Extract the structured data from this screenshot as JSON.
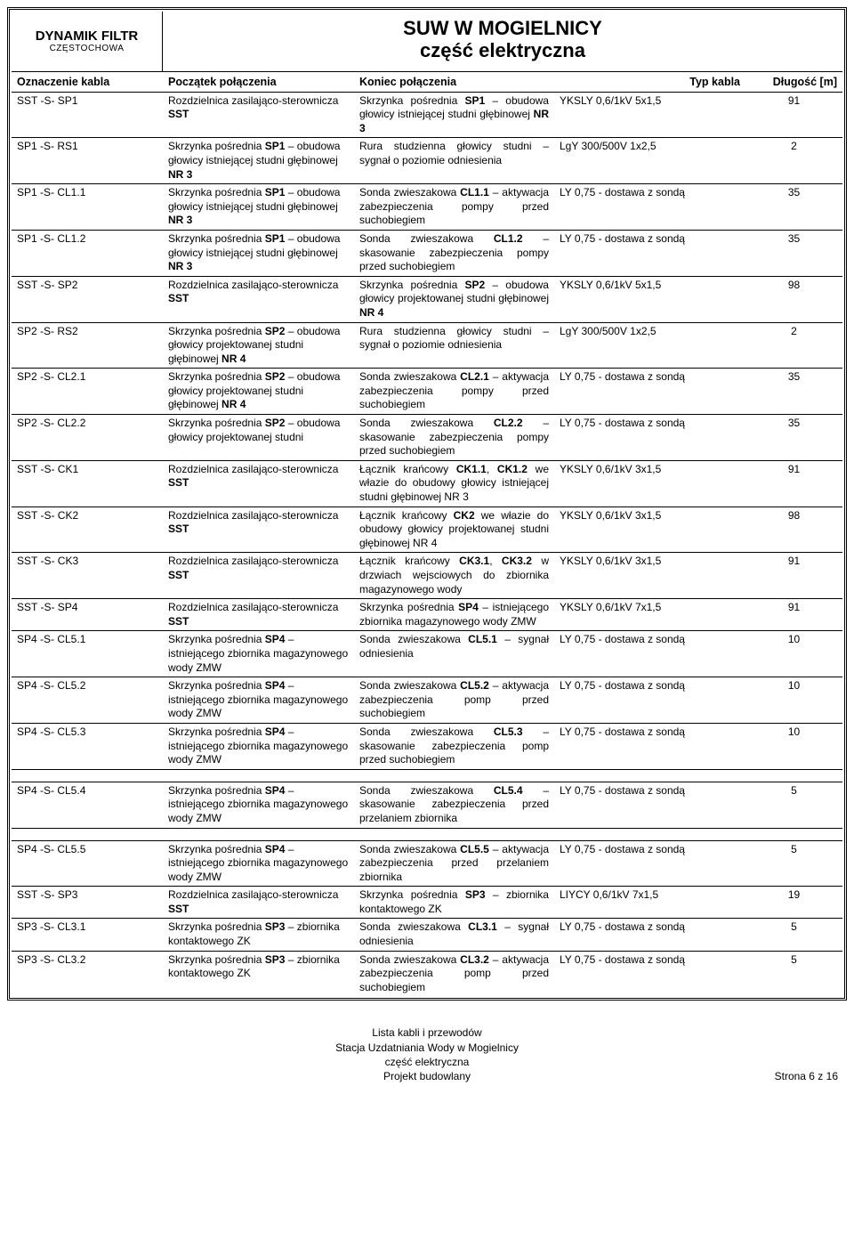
{
  "brand": {
    "name": "DYNAMIK FILTR",
    "city": "CZĘSTOCHOWA"
  },
  "doc": {
    "title1": "SUW W MOGIELNICY",
    "title2": "część elektryczna"
  },
  "headers": {
    "ozn": "Oznaczenie kabla",
    "pocz": "Początek połączenia",
    "kon": "Koniec połączenia",
    "typ": "Typ kabla",
    "dl": "Długość [m]"
  },
  "rows": [
    {
      "ozn": "SST -S- SP1",
      "pocz": "Rozdzielnica zasilająco-sterownicza <b>SST</b>",
      "kon": "Skrzynka pośrednia <b>SP1</b> – obudowa głowicy istniejącej studni głębinowej <b>NR 3</b>",
      "typ": "YKSLY 0,6/1kV 5x1,5",
      "dl": "91"
    },
    {
      "ozn": "SP1 -S- RS1",
      "pocz": "Skrzynka pośrednia <b>SP1</b> – obudowa głowicy istniejącej studni głębinowej <b>NR 3</b>",
      "kon": "Rura studzienna głowicy studni – sygnał o poziomie odniesienia",
      "typ": "LgY 300/500V 1x2,5",
      "dl": "2"
    },
    {
      "ozn": "SP1 -S- CL1.1",
      "pocz": "Skrzynka pośrednia <b>SP1</b> – obudowa głowicy istniejącej studni głębinowej <b>NR 3</b>",
      "kon": "Sonda zwieszakowa <b>CL1.1</b> – aktywacja zabezpieczenia pompy przed suchobiegiem",
      "typ": "LY 0,75 - dostawa z sondą",
      "dl": "35"
    },
    {
      "ozn": "SP1 -S- CL1.2",
      "pocz": "Skrzynka pośrednia <b>SP1</b> – obudowa głowicy istniejącej studni głębinowej <b>NR 3</b>",
      "kon": "Sonda zwieszakowa <b>CL1.2</b> – skasowanie zabezpieczenia pompy przed suchobiegiem",
      "typ": "LY 0,75 - dostawa z sondą",
      "dl": "35"
    },
    {
      "ozn": "SST -S- SP2",
      "pocz": "Rozdzielnica zasilająco-sterownicza <b>SST</b>",
      "kon": "Skrzynka pośrednia <b>SP2</b> – obudowa głowicy projektowanej studni głębinowej <b>NR 4</b>",
      "typ": "YKSLY 0,6/1kV 5x1,5",
      "dl": "98"
    },
    {
      "ozn": "SP2 -S- RS2",
      "pocz": "Skrzynka pośrednia <b>SP2</b> – obudowa głowicy projektowanej studni głębinowej <b>NR 4</b>",
      "kon": "Rura studzienna głowicy studni – sygnał o poziomie odniesienia",
      "typ": "LgY 300/500V 1x2,5",
      "dl": "2"
    },
    {
      "ozn": "SP2 -S- CL2.1",
      "pocz": "Skrzynka pośrednia <b>SP2</b> – obudowa głowicy projektowanej studni głębinowej <b>NR 4</b>",
      "kon": "Sonda zwieszakowa <b>CL2.1</b> – aktywacja zabezpieczenia pompy przed suchobiegiem",
      "typ": "LY 0,75 - dostawa z sondą",
      "dl": "35"
    },
    {
      "ozn": "SP2 -S- CL2.2",
      "pocz": "Skrzynka pośrednia <b>SP2</b> – obudowa głowicy projektowanej studni",
      "kon": "Sonda zwieszakowa <b>CL2.2</b> – skasowanie zabezpieczenia pompy przed suchobiegiem",
      "typ": "LY 0,75 - dostawa z sondą",
      "dl": "35"
    },
    {
      "ozn": "SST -S- CK1",
      "pocz": "Rozdzielnica zasilająco-sterownicza <b>SST</b>",
      "kon": "Łącznik krańcowy <b>CK1.1</b>, <b>CK1.2</b> we włazie do obudowy głowicy istniejącej studni głębinowej NR 3",
      "typ": "YKSLY 0,6/1kV 3x1,5",
      "dl": "91"
    },
    {
      "ozn": "SST -S- CK2",
      "pocz": "Rozdzielnica zasilająco-sterownicza <b>SST</b>",
      "kon": "Łącznik krańcowy <b>CK2</b> we włazie do obudowy głowicy projektowanej studni głębinowej NR 4",
      "typ": "YKSLY 0,6/1kV 3x1,5",
      "dl": "98"
    },
    {
      "ozn": "SST -S- CK3",
      "pocz": "Rozdzielnica zasilająco-sterownicza <b>SST</b>",
      "kon": "Łącznik krańcowy <b>CK3.1</b>, <b>CK3.2</b> w drzwiach wejsciowych do zbiornika magazynowego wody",
      "typ": "YKSLY 0,6/1kV 3x1,5",
      "dl": "91"
    },
    {
      "ozn": "SST -S- SP4",
      "pocz": "Rozdzielnica zasilająco-sterownicza <b>SST</b>",
      "kon": "Skrzynka pośrednia <b>SP4</b> – istniejącego zbiornika magazynowego wody ZMW",
      "typ": "YKSLY 0,6/1kV 7x1,5",
      "dl": "91"
    },
    {
      "ozn": "SP4 -S- CL5.1",
      "pocz": "Skrzynka pośrednia <b>SP4</b> – istniejącego zbiornika magazynowego wody ZMW",
      "kon": "Sonda zwieszakowa <b>CL5.1</b> – sygnał odniesienia",
      "typ": "LY 0,75 - dostawa z sondą",
      "dl": "10"
    },
    {
      "ozn": "SP4 -S- CL5.2",
      "pocz": "Skrzynka pośrednia <b>SP4</b> – istniejącego zbiornika magazynowego wody ZMW",
      "kon": "Sonda zwieszakowa <b>CL5.2</b> – aktywacja zabezpieczenia pomp przed suchobiegiem",
      "typ": "LY 0,75 - dostawa z sondą",
      "dl": "10"
    },
    {
      "ozn": "SP4 -S- CL5.3",
      "pocz": "Skrzynka pośrednia <b>SP4</b> – istniejącego zbiornika magazynowego wody ZMW",
      "kon": "Sonda zwieszakowa <b>CL5.3</b> – skasowanie zabezpieczenia pomp przed suchobiegiem",
      "typ": "LY 0,75 - dostawa z sondą",
      "dl": "10"
    },
    {
      "spacer": true
    },
    {
      "ozn": "SP4 -S- CL5.4",
      "pocz": "Skrzynka pośrednia <b>SP4</b> – istniejącego zbiornika magazynowego wody ZMW",
      "kon": "Sonda zwieszakowa <b>CL5.4</b> – skasowanie zabezpieczenia przed przelaniem zbiornika",
      "typ": "LY 0,75 - dostawa z sondą",
      "dl": "5"
    },
    {
      "spacer": true
    },
    {
      "ozn": "SP4 -S- CL5.5",
      "pocz": "Skrzynka pośrednia <b>SP4</b> – istniejącego zbiornika magazynowego wody ZMW",
      "kon": "Sonda zwieszakowa <b>CL5.5</b> – aktywacja zabezpieczenia przed przelaniem zbiornika",
      "typ": "LY 0,75 - dostawa z sondą",
      "dl": "5"
    },
    {
      "ozn": "SST -S- SP3",
      "pocz": "Rozdzielnica zasilająco-sterownicza <b>SST</b>",
      "kon": "Skrzynka pośrednia <b>SP3</b> – zbiornika kontaktowego ZK",
      "typ": "LIYCY 0,6/1kV 7x1,5",
      "dl": "19"
    },
    {
      "ozn": "SP3 -S- CL3.1",
      "pocz": "Skrzynka pośrednia <b>SP3</b> – zbiornika kontaktowego ZK",
      "kon": "Sonda zwieszakowa <b>CL3.1</b> – sygnał odniesienia",
      "typ": "LY 0,75 - dostawa z sondą",
      "dl": "5"
    },
    {
      "ozn": "SP3 -S- CL3.2",
      "pocz": "Skrzynka pośrednia <b>SP3</b> – zbiornika kontaktowego ZK",
      "kon": "Sonda zwieszakowa <b>CL3.2</b> – aktywacja zabezpieczenia pomp przed suchobiegiem",
      "typ": "LY 0,75 - dostawa z sondą",
      "dl": "5"
    }
  ],
  "footer": {
    "line1": "Lista kabli i przewodów",
    "line2": "Stacja Uzdatniania Wody w Mogielnicy",
    "line3": "część elektryczna",
    "line4": "Projekt budowlany",
    "page": "Strona 6 z 16"
  }
}
